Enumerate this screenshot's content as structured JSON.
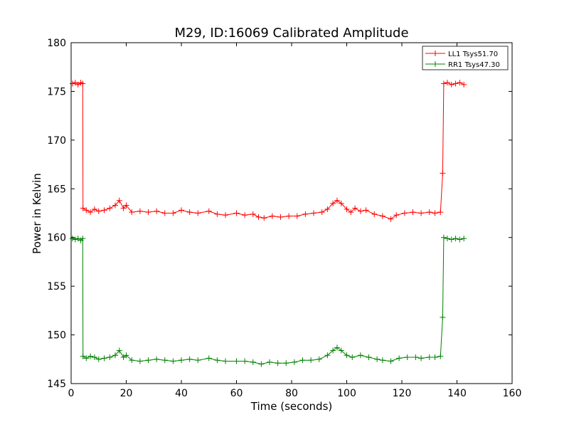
{
  "chart_data": {
    "type": "line",
    "title": "M29, ID:16069 Calibrated Amplitude",
    "xlabel": "Time (seconds)",
    "ylabel": "Power in Kelvin",
    "xlim": [
      0,
      160
    ],
    "ylim": [
      145,
      180
    ],
    "xticks": [
      0,
      20,
      40,
      60,
      80,
      100,
      120,
      140,
      160
    ],
    "yticks": [
      145,
      150,
      155,
      160,
      165,
      170,
      175,
      180
    ],
    "xtick_labels": [
      "0",
      "20",
      "40",
      "60",
      "80",
      "100",
      "120",
      "140",
      "160"
    ],
    "ytick_labels": [
      "145",
      "150",
      "155",
      "160",
      "165",
      "170",
      "175",
      "180"
    ],
    "grid": false,
    "legend_position": "top-right",
    "marker": "plus",
    "series": [
      {
        "name": "LL1 Tsys51.70",
        "color": "#ff0000",
        "points": [
          [
            0.5,
            175.8
          ],
          [
            1.5,
            175.9
          ],
          [
            2.5,
            175.7
          ],
          [
            3.5,
            175.9
          ],
          [
            4.2,
            175.8
          ],
          [
            4.3,
            163.0
          ],
          [
            5.5,
            162.8
          ],
          [
            7,
            162.6
          ],
          [
            8.5,
            162.9
          ],
          [
            10,
            162.7
          ],
          [
            12,
            162.8
          ],
          [
            14,
            163.0
          ],
          [
            16,
            163.3
          ],
          [
            17.5,
            163.8
          ],
          [
            19,
            163.0
          ],
          [
            20,
            163.3
          ],
          [
            22,
            162.6
          ],
          [
            25,
            162.7
          ],
          [
            28,
            162.6
          ],
          [
            31,
            162.7
          ],
          [
            34,
            162.5
          ],
          [
            37,
            162.5
          ],
          [
            40,
            162.8
          ],
          [
            43,
            162.6
          ],
          [
            46,
            162.5
          ],
          [
            50,
            162.7
          ],
          [
            53,
            162.4
          ],
          [
            56,
            162.3
          ],
          [
            60,
            162.5
          ],
          [
            63,
            162.3
          ],
          [
            66,
            162.4
          ],
          [
            68,
            162.1
          ],
          [
            70,
            162.0
          ],
          [
            73,
            162.2
          ],
          [
            76,
            162.1
          ],
          [
            79,
            162.2
          ],
          [
            82,
            162.2
          ],
          [
            85,
            162.4
          ],
          [
            88,
            162.5
          ],
          [
            91,
            162.6
          ],
          [
            93,
            162.9
          ],
          [
            95,
            163.5
          ],
          [
            96.5,
            163.8
          ],
          [
            98,
            163.5
          ],
          [
            100,
            162.9
          ],
          [
            101.5,
            162.6
          ],
          [
            103,
            163.0
          ],
          [
            105,
            162.7
          ],
          [
            107,
            162.8
          ],
          [
            110,
            162.4
          ],
          [
            113,
            162.2
          ],
          [
            116,
            161.9
          ],
          [
            118,
            162.3
          ],
          [
            121,
            162.5
          ],
          [
            124,
            162.6
          ],
          [
            127,
            162.5
          ],
          [
            130,
            162.6
          ],
          [
            132,
            162.5
          ],
          [
            134,
            162.6
          ],
          [
            134.8,
            166.6
          ],
          [
            135.2,
            175.8
          ],
          [
            136.5,
            175.9
          ],
          [
            138,
            175.7
          ],
          [
            139.5,
            175.8
          ],
          [
            141,
            175.9
          ],
          [
            142.5,
            175.7
          ]
        ]
      },
      {
        "name": "RR1 Tsys47.30",
        "color": "#008000",
        "points": [
          [
            0.5,
            159.9
          ],
          [
            1.5,
            159.8
          ],
          [
            2.5,
            159.9
          ],
          [
            3.5,
            159.7
          ],
          [
            4.2,
            159.9
          ],
          [
            4.3,
            147.8
          ],
          [
            5.5,
            147.6
          ],
          [
            7,
            147.8
          ],
          [
            8.5,
            147.7
          ],
          [
            10,
            147.5
          ],
          [
            12,
            147.6
          ],
          [
            14,
            147.7
          ],
          [
            16,
            147.9
          ],
          [
            17.5,
            148.4
          ],
          [
            19,
            147.7
          ],
          [
            20,
            147.9
          ],
          [
            22,
            147.4
          ],
          [
            25,
            147.3
          ],
          [
            28,
            147.4
          ],
          [
            31,
            147.5
          ],
          [
            34,
            147.4
          ],
          [
            37,
            147.3
          ],
          [
            40,
            147.4
          ],
          [
            43,
            147.5
          ],
          [
            46,
            147.4
          ],
          [
            50,
            147.6
          ],
          [
            53,
            147.4
          ],
          [
            56,
            147.3
          ],
          [
            60,
            147.3
          ],
          [
            63,
            147.3
          ],
          [
            66,
            147.2
          ],
          [
            69,
            147.0
          ],
          [
            72,
            147.2
          ],
          [
            75,
            147.1
          ],
          [
            78,
            147.1
          ],
          [
            81,
            147.2
          ],
          [
            84,
            147.4
          ],
          [
            87,
            147.4
          ],
          [
            90,
            147.5
          ],
          [
            93,
            147.9
          ],
          [
            95,
            148.4
          ],
          [
            96.5,
            148.7
          ],
          [
            98,
            148.4
          ],
          [
            100,
            147.9
          ],
          [
            102,
            147.7
          ],
          [
            105,
            147.9
          ],
          [
            108,
            147.7
          ],
          [
            111,
            147.5
          ],
          [
            113,
            147.4
          ],
          [
            116,
            147.3
          ],
          [
            119,
            147.6
          ],
          [
            122,
            147.7
          ],
          [
            125,
            147.7
          ],
          [
            127,
            147.6
          ],
          [
            130,
            147.7
          ],
          [
            132,
            147.7
          ],
          [
            134,
            147.8
          ],
          [
            134.8,
            151.8
          ],
          [
            135.2,
            160.0
          ],
          [
            136.5,
            159.9
          ],
          [
            138,
            159.8
          ],
          [
            139.5,
            159.9
          ],
          [
            141,
            159.8
          ],
          [
            142.5,
            159.9
          ]
        ]
      }
    ]
  }
}
